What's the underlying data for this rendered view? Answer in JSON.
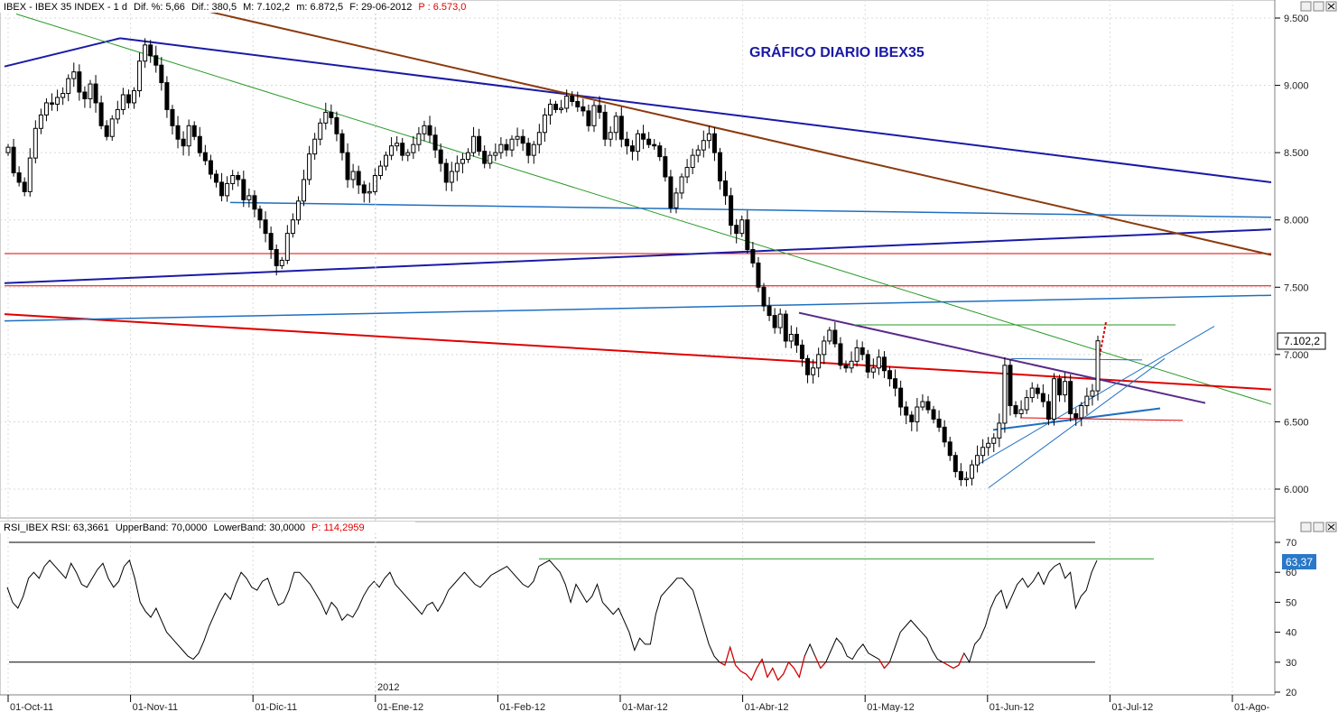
{
  "main_header": {
    "symbol": "IBEX - IBEX 35 INDEX - 1 d",
    "change_pct": "Dif. %: 5,66",
    "change": "Dif.: 380,5",
    "max": "M: 7.102,2",
    "min": "m: 6.872,5",
    "date": "F: 29-06-2012",
    "p": "P : 6.573,0"
  },
  "rsi_header": {
    "label": "RSI_IBEX RSI: 63,3661",
    "upper": "UpperBand: 70,0000",
    "lower": "LowerBand: 30,0000",
    "p": "P: 114,2959"
  },
  "title": "GRÁFICO DIARIO IBEX35",
  "year_marker": "2012",
  "price_ticks": [
    "9.500",
    "9.000",
    "8.500",
    "8.000",
    "7.500",
    "7.000",
    "6.500",
    "6.000"
  ],
  "rsi_ticks": [
    "70",
    "60",
    "50",
    "40",
    "30",
    "20"
  ],
  "last_price": "7.102,2",
  "last_rsi": "63,37",
  "x_ticks": [
    "01-Oct-11",
    "01-Nov-11",
    "01-Dic-11",
    "01-Ene-12",
    "01-Feb-12",
    "01-Mar-12",
    "01-Abr-12",
    "01-May-12",
    "01-Jun-12",
    "01-Jul-12",
    "01-Ago-"
  ],
  "colors": {
    "up": "#ffffff",
    "down": "#000000",
    "red": "#e00000",
    "navy": "#1a1aa6",
    "brown": "#8b3a0e",
    "green": "#2a9a2a",
    "blue": "#1f6fc0"
  },
  "chart_data": [
    {
      "type": "candlestick",
      "title": "GRÁFICO DIARIO IBEX35",
      "ylim": [
        5800,
        9550
      ],
      "xlim": [
        "2011-10-01",
        "2012-08-01"
      ],
      "closes": [
        8540,
        8350,
        8280,
        8210,
        8460,
        8680,
        8780,
        8870,
        8860,
        8910,
        8940,
        9050,
        9100,
        8950,
        8900,
        9010,
        8870,
        8700,
        8620,
        8750,
        8820,
        8930,
        8870,
        8960,
        9180,
        9300,
        9220,
        9150,
        9020,
        8820,
        8700,
        8600,
        8550,
        8700,
        8620,
        8500,
        8440,
        8340,
        8280,
        8180,
        8270,
        8330,
        8300,
        8150,
        8180,
        8080,
        8000,
        7900,
        7780,
        7660,
        7700,
        7900,
        8000,
        8140,
        8300,
        8490,
        8600,
        8720,
        8800,
        8760,
        8640,
        8500,
        8300,
        8360,
        8260,
        8200,
        8210,
        8330,
        8400,
        8480,
        8550,
        8570,
        8480,
        8500,
        8560,
        8640,
        8700,
        8630,
        8520,
        8420,
        8280,
        8360,
        8420,
        8450,
        8500,
        8620,
        8510,
        8420,
        8480,
        8500,
        8560,
        8520,
        8600,
        8620,
        8570,
        8480,
        8560,
        8650,
        8780,
        8860,
        8820,
        8830,
        8920,
        8880,
        8840,
        8810,
        8700,
        8850,
        8800,
        8600,
        8650,
        8770,
        8600,
        8550,
        8510,
        8640,
        8600,
        8560,
        8550,
        8470,
        8320,
        8090,
        8200,
        8320,
        8390,
        8480,
        8520,
        8590,
        8640,
        8500,
        8290,
        8180,
        7960,
        7900,
        8000,
        7780,
        7680,
        7500,
        7360,
        7290,
        7200,
        7300,
        7100,
        7150,
        7070,
        6970,
        6850,
        6900,
        7000,
        7100,
        7180,
        7080,
        6920,
        6900,
        6950,
        7050,
        7000,
        6870,
        6900,
        6980,
        6880,
        6820,
        6750,
        6610,
        6550,
        6500,
        6610,
        6650,
        6590,
        6520,
        6460,
        6350,
        6250,
        6130,
        6070,
        6080,
        6180,
        6250,
        6310,
        6340,
        6380,
        6490,
        6920,
        6620,
        6560,
        6590,
        6680,
        6750,
        6710,
        6650,
        6520,
        6820,
        6700,
        6800,
        6560,
        6530,
        6620,
        6690,
        6730,
        7102
      ],
      "horizontal_levels": [
        7750,
        7510
      ]
    },
    {
      "type": "line",
      "title": "RSI",
      "ylim": [
        20,
        72
      ],
      "bands": [
        70,
        30
      ],
      "resistance": 64.5,
      "values": [
        55,
        50,
        48,
        52,
        58,
        60,
        58,
        62,
        64,
        62,
        60,
        58,
        63,
        60,
        56,
        55,
        58,
        61,
        63,
        58,
        55,
        57,
        62,
        64,
        58,
        50,
        47,
        45,
        48,
        44,
        40,
        38,
        36,
        34,
        32,
        31,
        33,
        37,
        42,
        46,
        50,
        53,
        51,
        56,
        60,
        58,
        55,
        54,
        57,
        58,
        53,
        49,
        50,
        54,
        60,
        60,
        58,
        56,
        53,
        50,
        46,
        50,
        48,
        44,
        46,
        45,
        48,
        52,
        55,
        57,
        55,
        58,
        60,
        56,
        54,
        52,
        50,
        48,
        46,
        49,
        50,
        47,
        50,
        54,
        56,
        58,
        60,
        58,
        56,
        55,
        57,
        59,
        60,
        61,
        62,
        60,
        58,
        56,
        55,
        57,
        62,
        63,
        64,
        62,
        60,
        56,
        50,
        56,
        53,
        50,
        52,
        56,
        50,
        48,
        46,
        48,
        44,
        40,
        34,
        38,
        36,
        36,
        46,
        52,
        54,
        56,
        58,
        58,
        56,
        54,
        48,
        42,
        36,
        32,
        30,
        29,
        35,
        29,
        27,
        26,
        24,
        28,
        31,
        25,
        28,
        24,
        26,
        30,
        28,
        25,
        32,
        36,
        32,
        28,
        30,
        34,
        38,
        36,
        32,
        31,
        34,
        36,
        33,
        32,
        31,
        28,
        30,
        35,
        40,
        42,
        44,
        42,
        40,
        38,
        34,
        31,
        30,
        29,
        28,
        29,
        33,
        30,
        36,
        38,
        42,
        48,
        52,
        54,
        48,
        52,
        56,
        58,
        55,
        57,
        60,
        56,
        60,
        62,
        63,
        58,
        60,
        48,
        52,
        54,
        60,
        64
      ]
    }
  ]
}
